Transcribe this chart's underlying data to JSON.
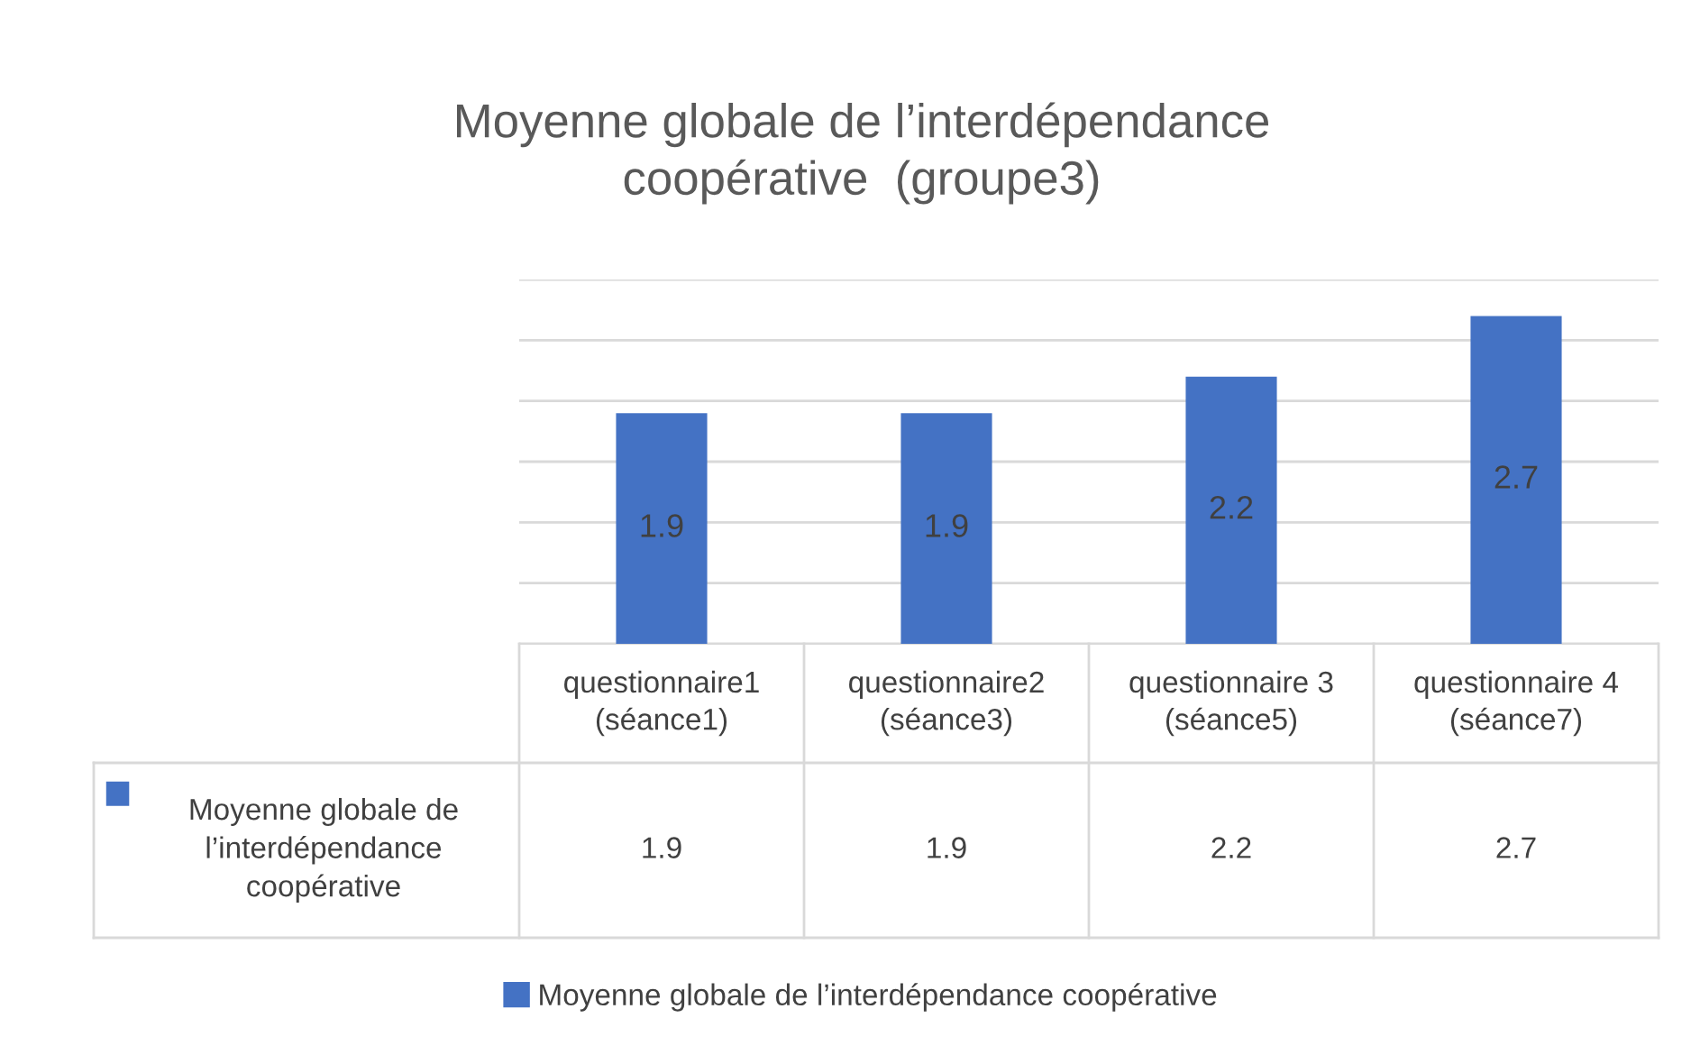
{
  "chart_data": {
    "type": "bar",
    "title": "Moyenne globale de l’interdépendance\ncoopérative  (groupe3)",
    "categories": [
      "questionnaire1\n(séance1)",
      "questionnaire2\n(séance3)",
      "questionnaire 3\n(séance5)",
      "questionnaire 4\n(séance7)"
    ],
    "series": [
      {
        "name": "Moyenne globale de l’interdépendance coopérative",
        "color": "#4472c4",
        "values": [
          1.9,
          1.9,
          2.2,
          2.7
        ]
      }
    ],
    "annotations": [
      "1.9",
      "1.9",
      "2.2",
      "2.7"
    ],
    "ylim": [
      0,
      3
    ],
    "yticks": [
      {
        "value": 0,
        "label": null
      },
      {
        "value": 0.5,
        "label": null
      },
      {
        "value": 1,
        "label": null
      },
      {
        "value": 1.5,
        "label": null
      },
      {
        "value": 2,
        "label": null
      },
      {
        "value": 2.5,
        "label": null
      },
      {
        "value": 3,
        "label": null
      }
    ],
    "grid": "y",
    "data_labels": true,
    "legend": "bottom"
  }
}
